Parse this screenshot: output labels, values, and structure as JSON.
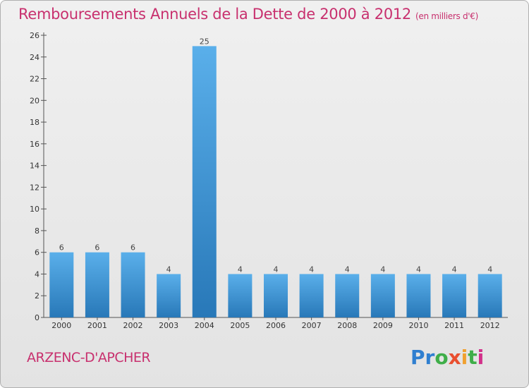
{
  "header": {
    "title": "Remboursements Annuels de la Dette de 2000 à 2012",
    "subtitle": "(en milliers d'€)"
  },
  "footer": {
    "place": "ARZENC-D'APCHER",
    "logo": "Proxiti"
  },
  "colors": {
    "accent": "#c8306e",
    "bar_top": "#5aafea",
    "bar_bottom": "#2878b8"
  },
  "chart_data": {
    "type": "bar",
    "title": "Remboursements Annuels de la Dette de 2000 à 2012",
    "subtitle": "(en milliers d'€)",
    "xlabel": "",
    "ylabel": "",
    "categories": [
      "2000",
      "2001",
      "2002",
      "2003",
      "2004",
      "2005",
      "2006",
      "2007",
      "2008",
      "2009",
      "2010",
      "2011",
      "2012"
    ],
    "values": [
      6,
      6,
      6,
      4,
      25,
      4,
      4,
      4,
      4,
      4,
      4,
      4,
      4
    ],
    "ylim": [
      0,
      26
    ],
    "yticks": [
      0,
      2,
      4,
      6,
      8,
      10,
      12,
      14,
      16,
      18,
      20,
      22,
      24,
      26
    ],
    "grid": false,
    "data_labels": true
  }
}
